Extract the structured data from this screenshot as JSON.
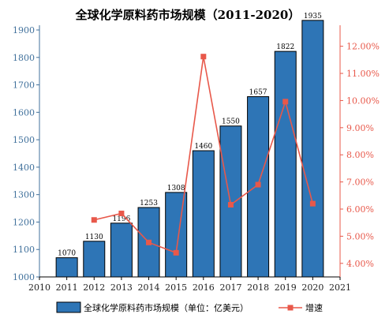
{
  "chart_data": {
    "type": "bar",
    "title": "全球化学原料药市场规模（2011-2020）",
    "x": [
      2011,
      2012,
      2013,
      2014,
      2015,
      2016,
      2017,
      2018,
      2019,
      2020
    ],
    "x_ticks": [
      "2010",
      "2011",
      "2012",
      "2013",
      "2014",
      "2015",
      "2016",
      "2017",
      "2018",
      "2019",
      "2020",
      "2021"
    ],
    "xlim": [
      2010,
      2021
    ],
    "ylim": [
      1000,
      1900
    ],
    "y_ticks": [
      "1000",
      "1100",
      "1200",
      "1300",
      "1400",
      "1500",
      "1600",
      "1700",
      "1800",
      "1900"
    ],
    "y2lim": [
      3.5,
      12.6
    ],
    "y2_ticks": [
      "4.00%",
      "5.00%",
      "6.00%",
      "7.00%",
      "8.00%",
      "9.00%",
      "10.00%",
      "11.00%",
      "12.00%"
    ],
    "series": [
      {
        "name": "全球化学原料药市场规模（单位：亿美元）",
        "type": "bar",
        "axis": "left",
        "color": "#2e75b6",
        "values": [
          1070,
          1130,
          1196,
          1253,
          1308,
          1460,
          1550,
          1657,
          1822,
          1935
        ],
        "labels": [
          "1070",
          "1130",
          "1196",
          "1253",
          "1308",
          "1460",
          "1550",
          "1657",
          "1822",
          "1935"
        ]
      },
      {
        "name": "增速",
        "type": "line",
        "axis": "right",
        "color": "#e8584a",
        "x": [
          2012,
          2013,
          2014,
          2015,
          2016,
          2017,
          2018,
          2019,
          2020
        ],
        "values": [
          5.6,
          5.84,
          4.77,
          4.39,
          11.62,
          6.16,
          6.9,
          9.96,
          6.2
        ]
      }
    ],
    "legend_position": "bottom",
    "grid": false
  }
}
